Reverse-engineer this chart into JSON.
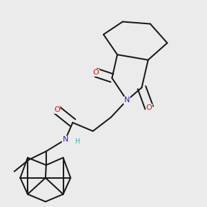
{
  "background_color": "#ebebeb",
  "bond_color": "#1a1a1a",
  "atom_colors": {
    "O": "#ee1111",
    "N": "#2222cc",
    "H": "#44aaaa",
    "C": "#1a1a1a"
  },
  "figsize": [
    3.0,
    3.0
  ],
  "dpi": 100
}
